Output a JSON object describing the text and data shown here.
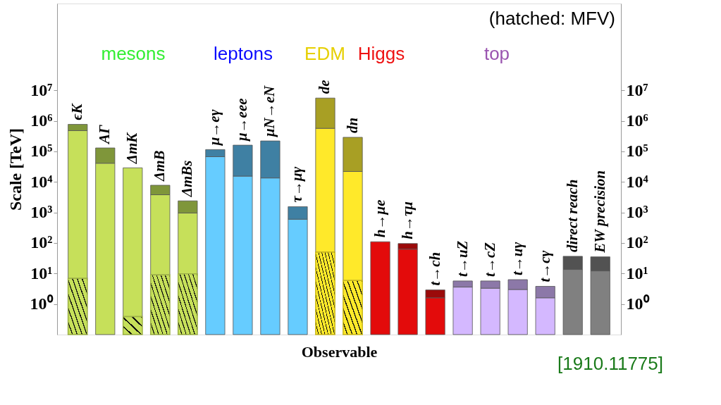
{
  "chart_data": {
    "type": "bar",
    "stacked": true,
    "xlabel": "Observable",
    "ylabel": "Scale [TeV]",
    "categories": [
      "ϵK",
      "AΓ",
      "ΔmK",
      "ΔmB",
      "ΔmBs",
      "μ→eγ",
      "μ→eee",
      "μN→eN",
      "τ→μγ",
      "de",
      "dn",
      "h→μe",
      "h→τμ",
      "t→ch",
      "t→uZ",
      "t→cZ",
      "t→uγ",
      "t→cγ",
      "direct reach",
      "EW precision"
    ],
    "series": [
      {
        "colors": [
          "#9cb046",
          "#9cb046",
          "#9cb046",
          "#9cb046",
          "#9cb046",
          "#66ccff",
          "#66ccff",
          "#66ccff",
          "#66ccff",
          "#c9b81c",
          "#c9b81c",
          "#e30b0b",
          "#e30b0b",
          "#e30b0b",
          "#d4b8ff",
          "#d4b8ff",
          "#d4b8ff",
          "#d4b8ff",
          "#808080",
          "#808080"
        ],
        "values": [
          6.9,
          null,
          0.39,
          9,
          9.8,
          null,
          null,
          null,
          null,
          50,
          5.9,
          null,
          null,
          null,
          null,
          null,
          null,
          null,
          null,
          null
        ]
      },
      {
        "colors": [
          "#c6e05a",
          "#c6e05a",
          "#c6e05a",
          "#c6e05a",
          "#c6e05a",
          "#66ccff",
          "#66ccff",
          "#66ccff",
          "#66ccff",
          "#ffe92a",
          "#ffe92a",
          "#e30b0b",
          "#e30b0b",
          "#e30b0b",
          "#d4b8ff",
          "#d4b8ff",
          "#d4b8ff",
          "#d4b8ff",
          "#808080",
          "#808080"
        ],
        "values": [
          480000,
          41000,
          29000,
          3790,
          950,
          67000,
          15500,
          13500,
          600,
          570000,
          22000,
          110,
          63,
          1.6,
          3.6,
          3.3,
          3.0,
          1.6,
          13.6,
          12.2
        ]
      },
      {
        "colors": [
          "#7f963a",
          "#7f963a",
          "#7f963a",
          "#7f963a",
          "#7f963a",
          "#3f80a3",
          "#3f80a3",
          "#3f80a3",
          "#3f80a3",
          "#a89f24",
          "#a89f24",
          "#9b0a0a",
          "#9b0a0a",
          "#9b0a0a",
          "#8c78a8",
          "#8c78a8",
          "#8c78a8",
          "#8c78a8",
          "#525252",
          "#525252"
        ],
        "values": [
          290000,
          89000,
          null,
          4000,
          1440,
          48000,
          145000,
          207000,
          950,
          5030000,
          268000,
          null,
          33,
          1.3,
          2.1,
          2.4,
          3.3,
          2.2,
          23,
          23
        ]
      }
    ],
    "ylim": [
      0.1,
      7000000000
    ],
    "yticks": [
      {
        "value": 1,
        "label": "10⁰"
      },
      {
        "value": 10,
        "label": "10¹"
      },
      {
        "value": 100,
        "label": "10²"
      },
      {
        "value": 1000,
        "label": "10³"
      },
      {
        "value": 10000,
        "label": "10⁴"
      },
      {
        "value": 100000,
        "label": "10⁵"
      },
      {
        "value": 1000000,
        "label": "10⁶"
      },
      {
        "value": 10000000,
        "label": "10⁷"
      }
    ],
    "log": "y",
    "grid": false,
    "annotations": [
      "mesons",
      "leptons",
      "EDM",
      "Higgs",
      "top",
      "(hatched: MFV)",
      "[1910.11775]"
    ]
  }
}
